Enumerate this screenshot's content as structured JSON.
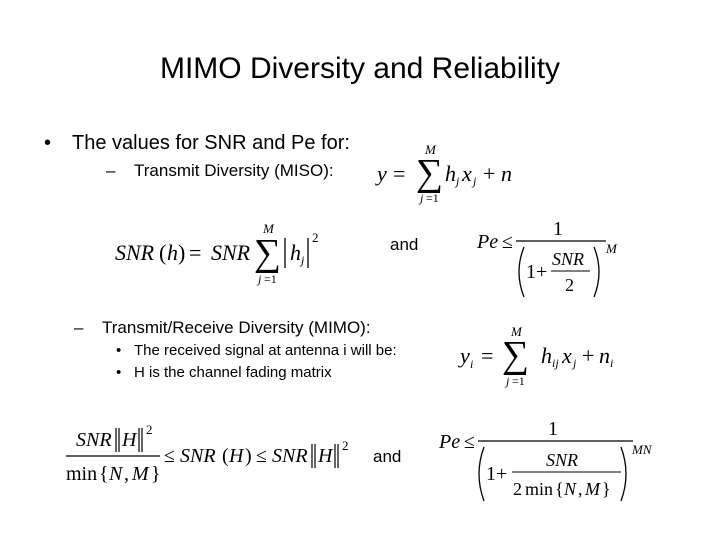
{
  "title": "MIMO Diversity and Reliability",
  "bullet_symbol": "•",
  "dash_symbol": "–",
  "bullet1": "The values for SNR and Pe for:",
  "sub1": "Transmit Diversity (MISO):",
  "sub2": "Transmit/Receive Diversity (MIMO):",
  "point1": "The received signal at antenna i will be:",
  "point2": "H is the channel fading matrix",
  "and_label": "and",
  "equations": {
    "miso_signal": "y = Σ_{j=1}^{M} h_j x_j + n",
    "miso_snr": "SNR(h) = SNR Σ_{j=1}^{M} |h_j|^2",
    "miso_pe": "Pe ≤ 1 / (1 + SNR/2)^M",
    "mimo_signal": "y_i = Σ_{j=1}^{M} h_ij x_j + n_i",
    "mimo_snr_bounds": "SNR‖H‖^2 / min{N,M} ≤ SNR(H) ≤ SNR‖H‖^2",
    "mimo_pe": "Pe ≤ 1 / (1 + SNR / (2 min{N,M}))^{MN}"
  }
}
